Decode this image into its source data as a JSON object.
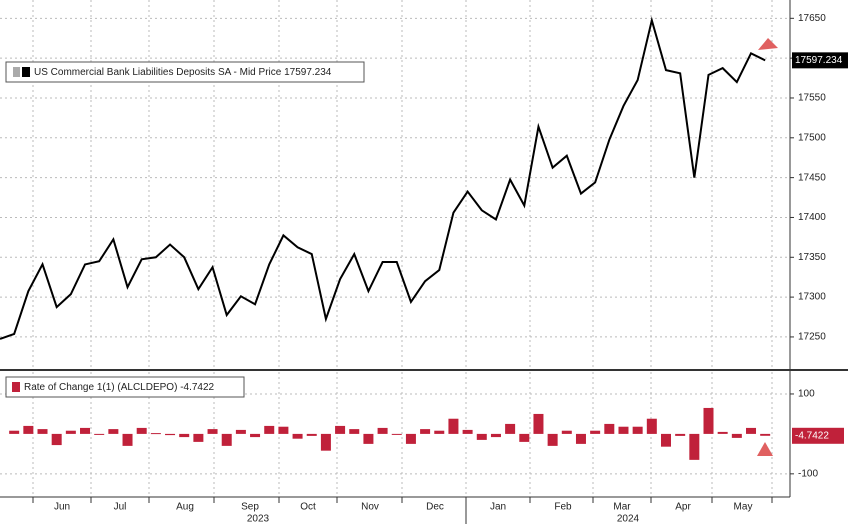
{
  "chart_data": [
    {
      "type": "line",
      "series": [
        {
          "name": "US Commercial Bank Liabilities Deposits SA - Mid Price",
          "color": "#000000",
          "values": [
            17247.5,
            17253.75,
            17307.5,
            17341.25,
            17287.5,
            17303.75,
            17341,
            17345,
            17372.5,
            17312.5,
            17347.5,
            17350,
            17366,
            17350,
            17310,
            17337.5,
            17277.5,
            17301,
            17291,
            17341,
            17377.5,
            17362.5,
            17354,
            17272.5,
            17322.5,
            17354,
            17307.5,
            17344,
            17344,
            17294,
            17320,
            17334,
            17406,
            17432.5,
            17409,
            17397.5,
            17447.5,
            17415,
            17514,
            17462.5,
            17477.5,
            17430,
            17444,
            17497.5,
            17540,
            17572.5,
            17647.5,
            17585,
            17581,
            17450,
            17579,
            17587.5,
            17570,
            17606,
            17597.234
          ]
        }
      ],
      "ylim": [
        17211,
        17673
      ],
      "yticks": [
        17250,
        17300,
        17350,
        17400,
        17450,
        17500,
        17550,
        17600,
        17650
      ],
      "grid": true
    },
    {
      "type": "bar",
      "series": [
        {
          "name": "Rate of Change 1(1) (ALCLDEPO)",
          "color": "#c0213a",
          "values": [
            null,
            8,
            20,
            12,
            -28,
            8,
            15,
            -2,
            12,
            -30,
            15,
            2,
            -3,
            -8,
            -20,
            12,
            -30,
            10,
            -8,
            20,
            18,
            -12,
            -5,
            -42,
            20,
            12,
            -25,
            15,
            0,
            -25,
            12,
            8,
            38,
            10,
            -15,
            -8,
            25,
            -20,
            50,
            -30,
            8,
            -25,
            8,
            25,
            18,
            18,
            38,
            -32,
            -5,
            -65,
            65,
            5,
            -10,
            15,
            -4.7422
          ]
        }
      ],
      "ylim": [
        -158,
        155
      ],
      "yticks": [
        100,
        -100
      ],
      "grid": true,
      "x_labels": [
        "Jun",
        "Jul",
        "Aug",
        "Sep",
        "Oct",
        "Nov",
        "Dec",
        "Jan",
        "Feb",
        "Mar",
        "Apr",
        "May"
      ],
      "year_labels": [
        "2023",
        "2024"
      ]
    }
  ]
}
